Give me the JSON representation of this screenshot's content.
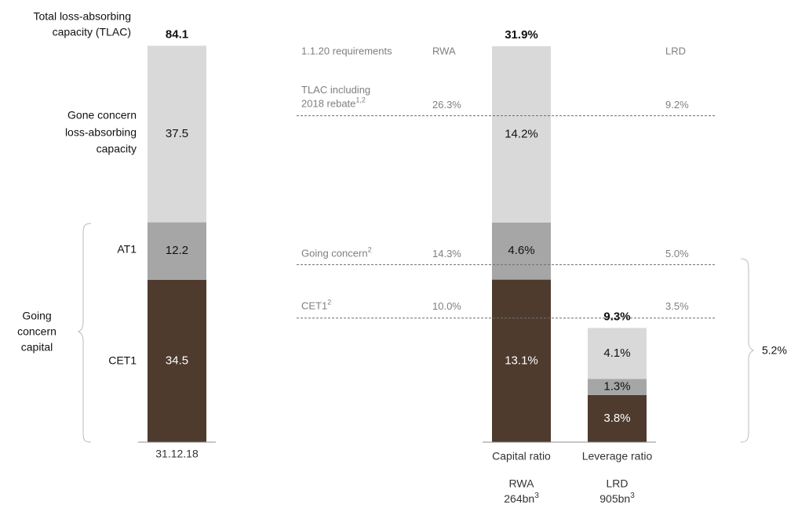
{
  "colors": {
    "gone": "#d9d9d9",
    "at1": "#a6a6a6",
    "cet1": "#4e3b2e",
    "dark_text": "#111111",
    "grey_text": "#7f7f7f",
    "light_text": "#ffffff",
    "line": "#8c8c8c"
  },
  "left_panel": {
    "total_label": [
      "Total loss-absorbing",
      "capacity (TLAC)"
    ],
    "total_value": "84.1",
    "gone_label": [
      "Gone concern",
      "loss-absorbing",
      "capacity"
    ],
    "at1_label": "AT1",
    "cet1_label": "CET1",
    "going_label": [
      "Going",
      "concern",
      "capital"
    ],
    "x_label": "31.12.18"
  },
  "right_panel": {
    "header_req": "1.1.20 requirements",
    "header_rwa": "RWA",
    "header_lrd": "LRD",
    "tlac_label": [
      "TLAC including",
      "2018 rebate"
    ],
    "tlac_sup": "1,2",
    "tlac_rwa": "26.3%",
    "tlac_lrd": "9.2%",
    "going_label": "Going concern",
    "going_sup": "2",
    "going_rwa": "14.3%",
    "going_lrd": "5.0%",
    "cet1_label": "CET1",
    "cet1_sup": "2",
    "cet1_rwa": "10.0%",
    "cet1_lrd": "3.5%",
    "brace_value": "5.2%",
    "capital_caption": "Capital ratio",
    "leverage_caption": "Leverage ratio",
    "rwa_denom": [
      "RWA",
      "264bn"
    ],
    "lrd_denom": [
      "LRD",
      "905bn"
    ],
    "denom_sup": "3"
  },
  "chart_data": [
    {
      "type": "bar",
      "stacked": true,
      "categories": [
        "31.12.18"
      ],
      "series": [
        {
          "name": "CET1",
          "values": [
            34.5
          ],
          "labels": [
            "34.5"
          ]
        },
        {
          "name": "AT1",
          "values": [
            12.2
          ],
          "labels": [
            "12.2"
          ]
        },
        {
          "name": "Gone concern loss-absorbing capacity",
          "values": [
            37.5
          ],
          "labels": [
            "37.5"
          ]
        }
      ],
      "totals": [
        "84.1"
      ]
    },
    {
      "type": "bar",
      "stacked": true,
      "categories": [
        "Capital ratio",
        "Leverage ratio"
      ],
      "series": [
        {
          "name": "CET1",
          "values": [
            13.1,
            3.8
          ],
          "labels": [
            "13.1%",
            "3.8%"
          ]
        },
        {
          "name": "AT1",
          "values": [
            4.6,
            1.3
          ],
          "labels": [
            "4.6%",
            "1.3%"
          ]
        },
        {
          "name": "Gone concern loss-absorbing capacity",
          "values": [
            14.2,
            4.1
          ],
          "labels": [
            "14.2%",
            "4.1%"
          ]
        }
      ],
      "totals": [
        "31.9%",
        "9.3%"
      ],
      "requirements": {
        "rwa": {
          "tlac": 26.3,
          "going_concern": 14.3,
          "cet1": 10.0
        },
        "lrd": {
          "tlac": 9.2,
          "going_concern": 5.0,
          "cet1": 3.5
        }
      }
    }
  ]
}
